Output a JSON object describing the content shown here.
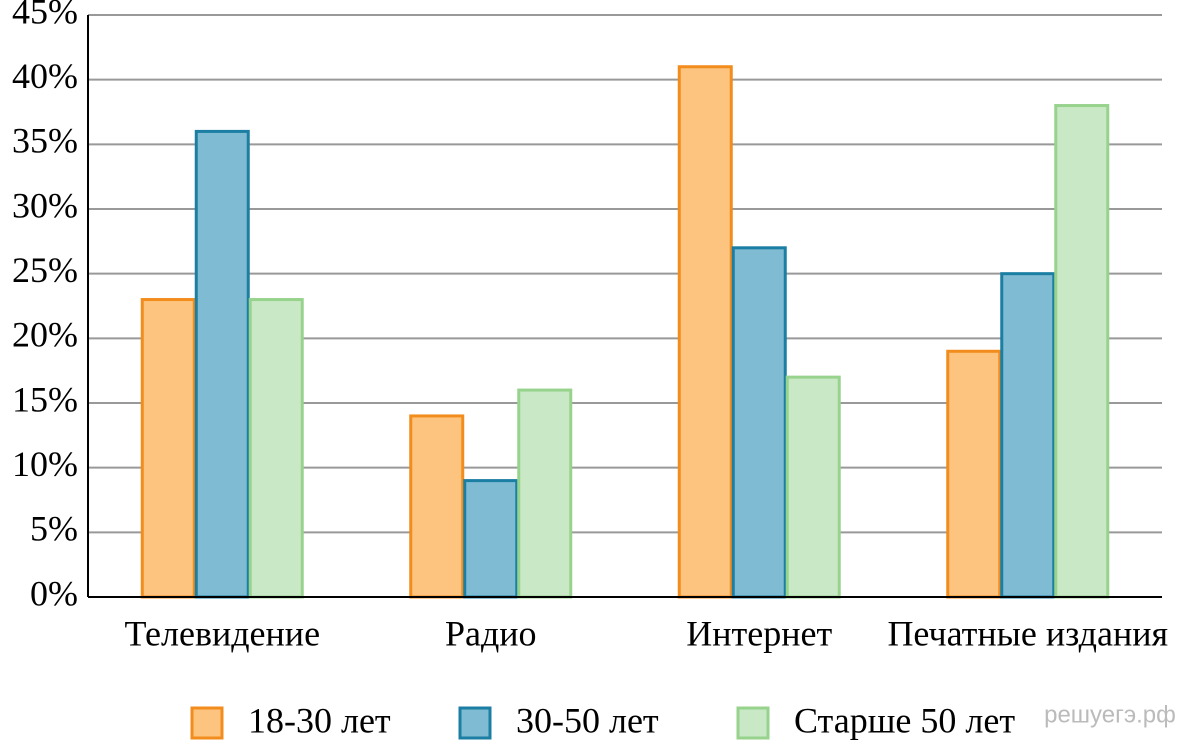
{
  "chart_data": {
    "type": "bar",
    "categories": [
      "Телевидение",
      "Радио",
      "Интернет",
      "Печатные издания"
    ],
    "series": [
      {
        "name": "18-30 лет",
        "color": "#fdc47f",
        "edgecolor": "#f28c1c",
        "values": [
          23,
          14,
          41,
          19
        ]
      },
      {
        "name": "30-50 лет",
        "color": "#7fbbd2",
        "edgecolor": "#1b7ea3",
        "values": [
          36,
          9,
          27,
          25
        ]
      },
      {
        "name": "Старше 50 лет",
        "color": "#c9e8c5",
        "edgecolor": "#98d38e",
        "values": [
          23,
          16,
          17,
          38
        ]
      }
    ],
    "ylim": [
      0,
      45
    ],
    "yticks": [
      {
        "value": 0,
        "label": "0%"
      },
      {
        "value": 5,
        "label": "5%"
      },
      {
        "value": 10,
        "label": "10%"
      },
      {
        "value": 15,
        "label": "15%"
      },
      {
        "value": 20,
        "label": "20%"
      },
      {
        "value": 25,
        "label": "25%"
      },
      {
        "value": 30,
        "label": "30%"
      },
      {
        "value": 35,
        "label": "35%"
      },
      {
        "value": 40,
        "label": "40%"
      },
      {
        "value": 45,
        "label": "45%"
      }
    ],
    "grid": true,
    "watermark": "решуегэ.рф"
  }
}
